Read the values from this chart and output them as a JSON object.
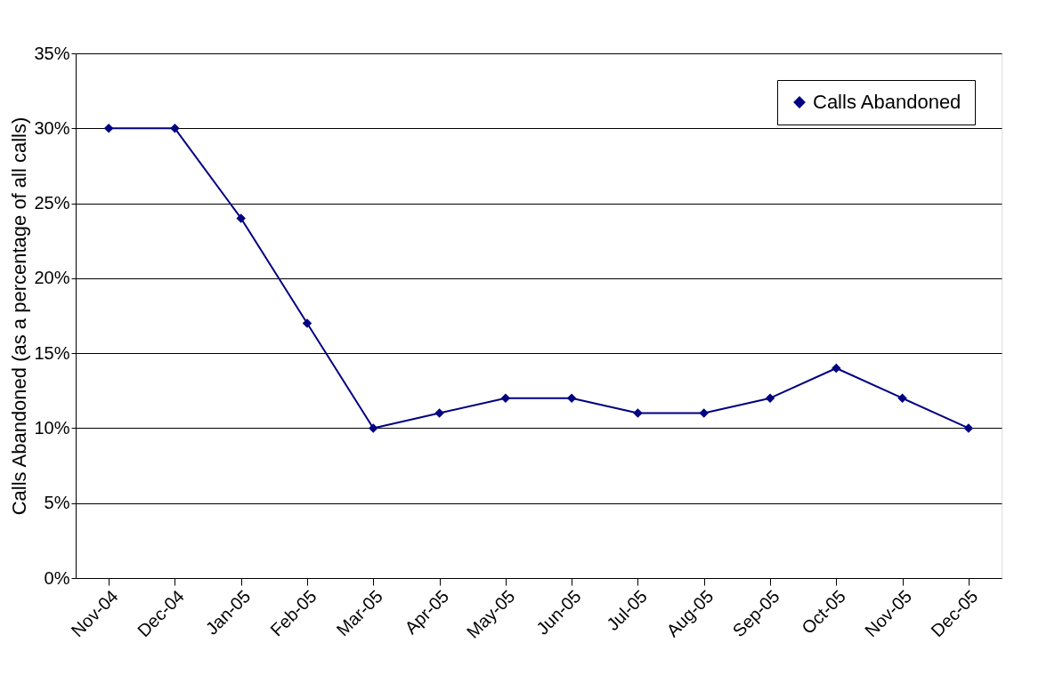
{
  "chart_data": {
    "type": "line",
    "ylabel": "Calls Abandoned (as a percentage of all calls)",
    "categories": [
      "Nov-04",
      "Dec-04",
      "Jan-05",
      "Feb-05",
      "Mar-05",
      "Apr-05",
      "May-05",
      "Jun-05",
      "Jul-05",
      "Aug-05",
      "Sep-05",
      "Oct-05",
      "Nov-05",
      "Dec-05"
    ],
    "series": [
      {
        "name": "Calls Abandoned",
        "color": "#000080",
        "values": [
          30,
          30,
          24,
          17,
          10,
          11,
          12,
          12,
          11,
          11,
          12,
          14,
          12,
          10
        ]
      }
    ],
    "ylim": [
      0,
      35
    ],
    "yticks": [
      {
        "value": 0,
        "label": "0%"
      },
      {
        "value": 5,
        "label": "5%"
      },
      {
        "value": 10,
        "label": "10%"
      },
      {
        "value": 15,
        "label": "15%"
      },
      {
        "value": 20,
        "label": "20%"
      },
      {
        "value": 25,
        "label": "25%"
      },
      {
        "value": 30,
        "label": "30%"
      },
      {
        "value": 35,
        "label": "35%"
      }
    ],
    "grid": "y",
    "legend": "top right",
    "marker": "diamond",
    "line_style": "solid"
  }
}
